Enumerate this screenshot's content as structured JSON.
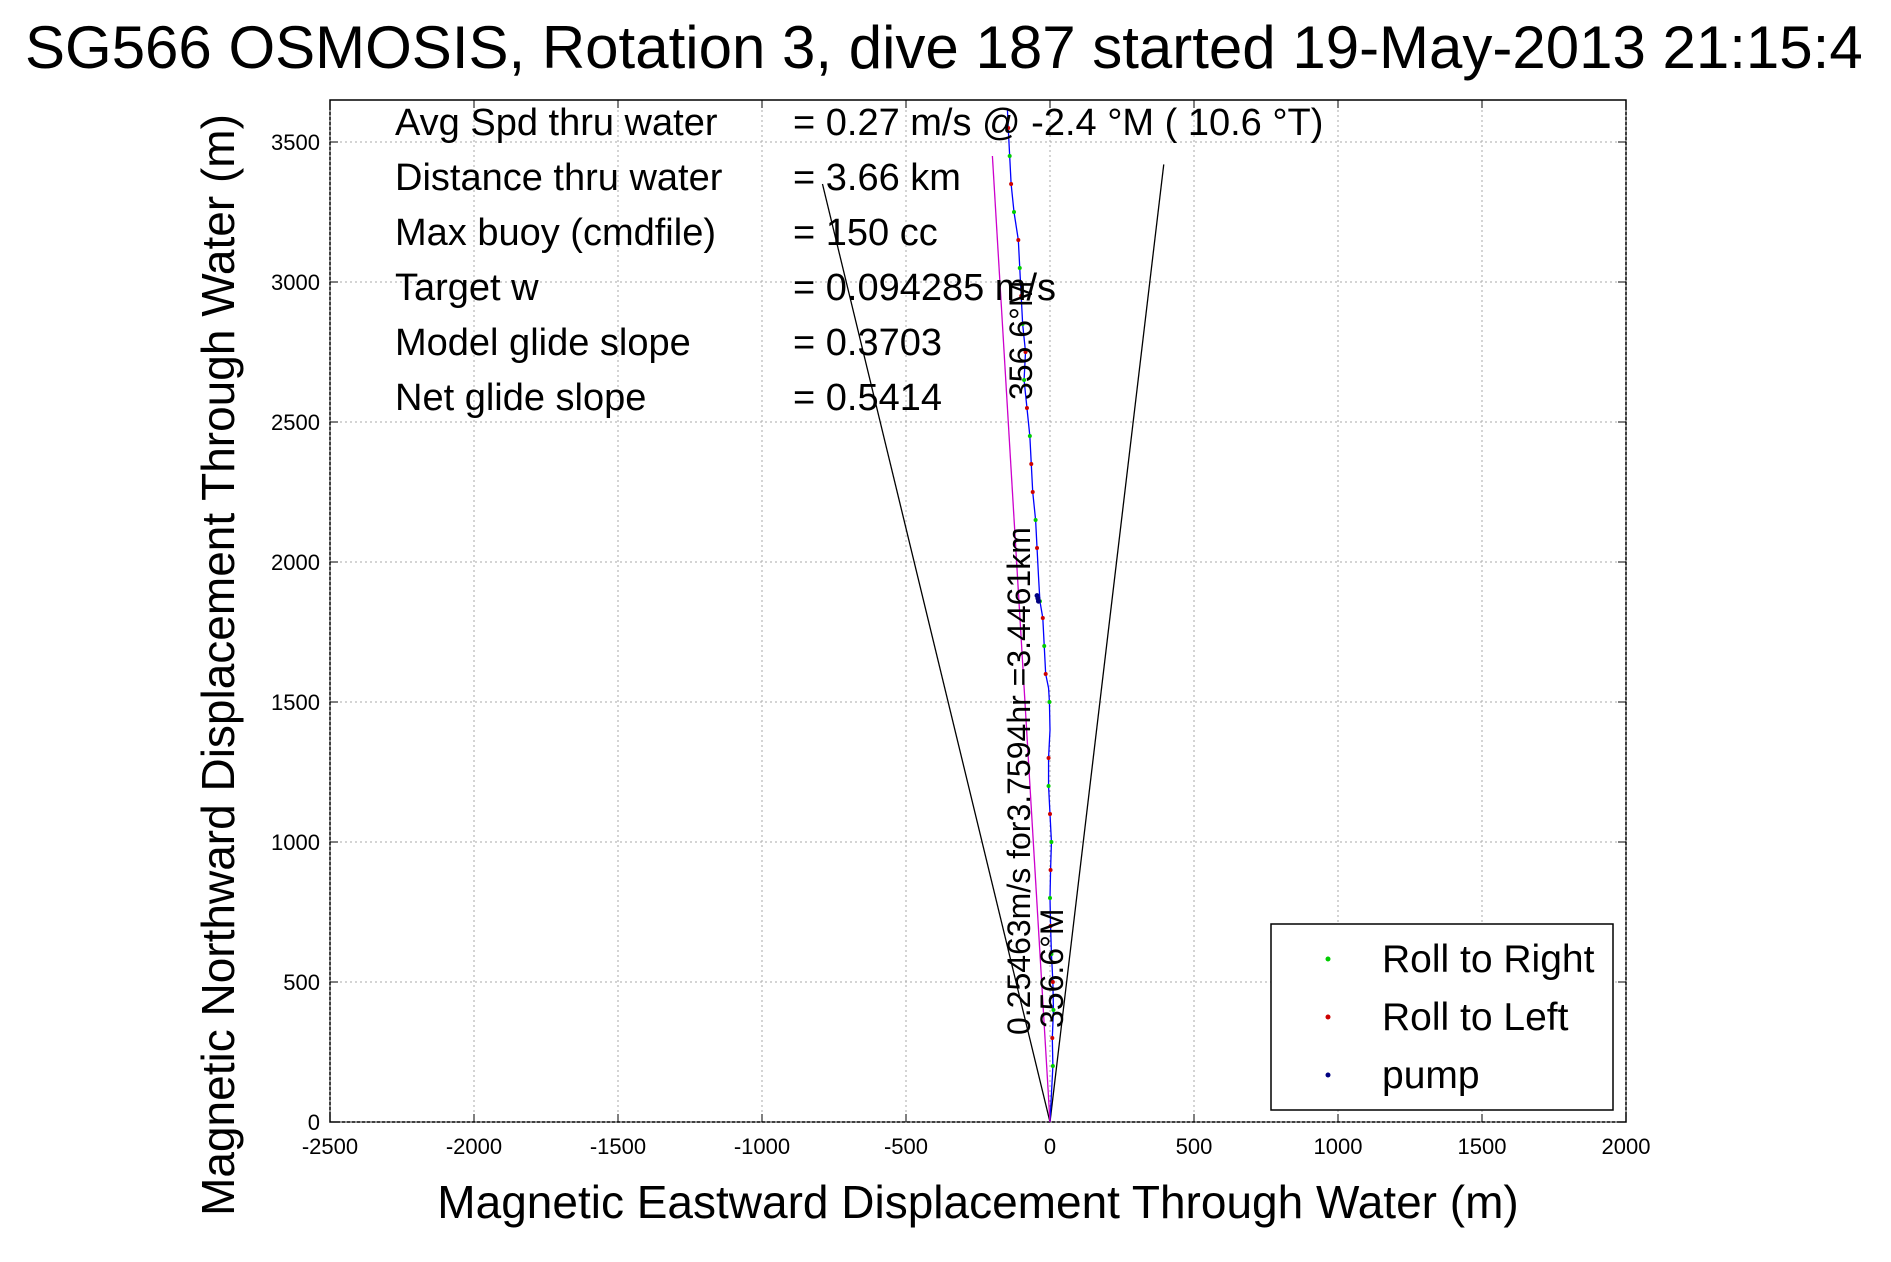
{
  "chart_data": {
    "type": "line",
    "title": "SG566 OSMOSIS, Rotation 3, dive 187 started 19-May-2013 21:15:4",
    "xlabel": "Magnetic Eastward Displacement Through Water (m)",
    "ylabel": "Magnetic Northward Displacement Through Water (m)",
    "xlim": [
      -2500,
      2000
    ],
    "ylim": [
      0,
      3650
    ],
    "x_ticks": [
      -2500,
      -2000,
      -1500,
      -1000,
      -500,
      0,
      500,
      1000,
      1500,
      2000
    ],
    "y_ticks": [
      0,
      500,
      1000,
      1500,
      2000,
      2500,
      3000,
      3500
    ],
    "grid": true,
    "legend_position": "bottom-right",
    "info_lines": [
      {
        "label": "Avg Spd thru water",
        "value": "=  0.27 m/s @  -2.4 °M ( 10.6 °T)"
      },
      {
        "label": "Distance thru water",
        "value": "=  3.66 km"
      },
      {
        "label": "Max buoy (cmdfile)",
        "value": "= 150 cc"
      },
      {
        "label": "Target w",
        "value": "= 0.094285 m/s"
      },
      {
        "label": "Model glide slope",
        "value": "= 0.3703"
      },
      {
        "label": "Net glide slope",
        "value": "= 0.5414"
      }
    ],
    "annotations": {
      "track_label": "0.25463m/s for3.7594hr =3.4461km",
      "heading_top": "356.6°M",
      "heading_bottom": "356.6°M"
    },
    "series": [
      {
        "name": "track",
        "color": "#0000ff",
        "points": [
          [
            0,
            0
          ],
          [
            5,
            100
          ],
          [
            10,
            200
          ],
          [
            8,
            300
          ],
          [
            12,
            400
          ],
          [
            10,
            500
          ],
          [
            5,
            600
          ],
          [
            2,
            700
          ],
          [
            0,
            800
          ],
          [
            2,
            900
          ],
          [
            5,
            1000
          ],
          [
            0,
            1100
          ],
          [
            -5,
            1200
          ],
          [
            -5,
            1300
          ],
          [
            0,
            1400
          ],
          [
            -2,
            1500
          ],
          [
            -5,
            1550
          ],
          [
            -15,
            1600
          ],
          [
            -20,
            1700
          ],
          [
            -25,
            1800
          ],
          [
            -35,
            1860
          ],
          [
            -40,
            1950
          ],
          [
            -45,
            2050
          ],
          [
            -50,
            2150
          ],
          [
            -60,
            2250
          ],
          [
            -65,
            2350
          ],
          [
            -70,
            2450
          ],
          [
            -80,
            2550
          ],
          [
            -90,
            2650
          ],
          [
            -85,
            2750
          ],
          [
            -95,
            2850
          ],
          [
            -100,
            2950
          ],
          [
            -105,
            3050
          ],
          [
            -110,
            3150
          ],
          [
            -125,
            3250
          ],
          [
            -135,
            3350
          ],
          [
            -140,
            3450
          ],
          [
            -145,
            3550
          ],
          [
            -148,
            3620
          ]
        ]
      },
      {
        "name": "magenta-line",
        "color": "#cc00cc",
        "points": [
          [
            0,
            0
          ],
          [
            -200,
            3450
          ]
        ]
      }
    ],
    "wedge_lines": [
      {
        "points": [
          [
            0,
            0
          ],
          [
            -790,
            3350
          ]
        ]
      },
      {
        "points": [
          [
            0,
            0
          ],
          [
            395,
            3420
          ]
        ]
      }
    ],
    "legend": [
      {
        "label": "Roll to Right",
        "color": "#00cc00"
      },
      {
        "label": "Roll to Left",
        "color": "#cc0000"
      },
      {
        "label": "pump",
        "color": "#000080"
      }
    ],
    "marker_points": {
      "roll_right": [
        [
          10,
          200
        ],
        [
          12,
          400
        ],
        [
          5,
          600
        ],
        [
          0,
          800
        ],
        [
          5,
          1000
        ],
        [
          -5,
          1200
        ],
        [
          -2,
          1500
        ],
        [
          -20,
          1700
        ],
        [
          -35,
          1860
        ],
        [
          -50,
          2150
        ],
        [
          -70,
          2450
        ],
        [
          -90,
          2650
        ],
        [
          -95,
          2850
        ],
        [
          -105,
          3050
        ],
        [
          -125,
          3250
        ],
        [
          -140,
          3450
        ]
      ],
      "roll_left": [
        [
          8,
          300
        ],
        [
          10,
          500
        ],
        [
          2,
          700
        ],
        [
          2,
          900
        ],
        [
          0,
          1100
        ],
        [
          -5,
          1300
        ],
        [
          -15,
          1600
        ],
        [
          -25,
          1800
        ],
        [
          -45,
          2050
        ],
        [
          -60,
          2250
        ],
        [
          -65,
          2350
        ],
        [
          -80,
          2550
        ],
        [
          -85,
          2750
        ],
        [
          -100,
          2950
        ],
        [
          -110,
          3150
        ],
        [
          -135,
          3350
        ],
        [
          -145,
          3550
        ]
      ],
      "pump": [
        [
          -40,
          1860
        ],
        [
          -42,
          1870
        ],
        [
          -45,
          1880
        ]
      ]
    }
  }
}
